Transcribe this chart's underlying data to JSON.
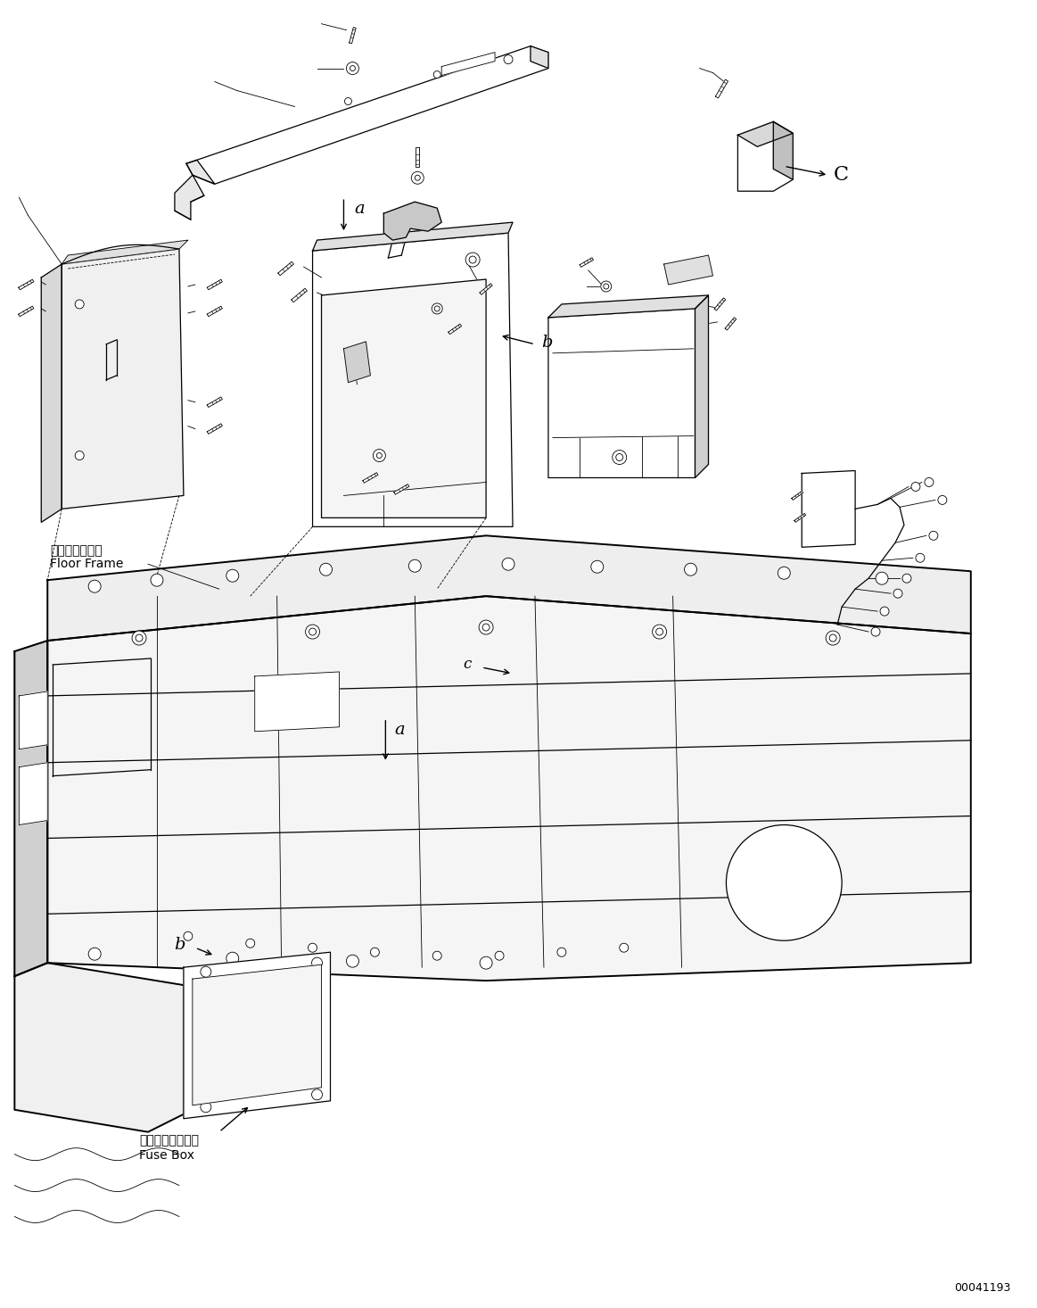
{
  "bg_color": "#ffffff",
  "line_color": "#000000",
  "fig_width": 11.63,
  "fig_height": 14.66,
  "labels": {
    "floor_frame_jp": "フロアフレーム",
    "floor_frame_en": "Floor Frame",
    "fuse_box_jp": "フューズボックス",
    "fuse_box_en": "Fuse Box",
    "label_a_top": "a",
    "label_b_mid": "b",
    "label_c_top": "C",
    "label_a_bot": "a",
    "label_b_bot": "b",
    "label_c_bot": "c"
  },
  "part_number": "00041193",
  "font_size_label": 10,
  "font_size_letter": 14,
  "font_size_partnum": 9
}
